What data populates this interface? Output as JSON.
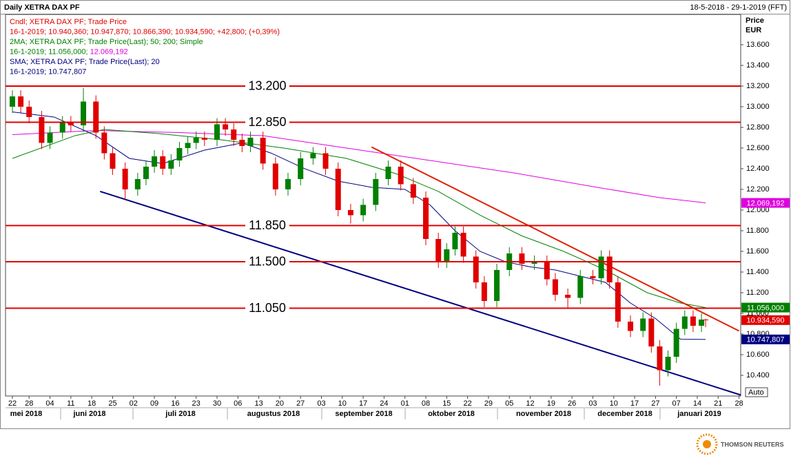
{
  "chart_data": {
    "type": "candlestick",
    "title": "Daily XETRA DAX PF",
    "date_range": "18-5-2018 - 29-1-2019 (FFT)",
    "y_label": "Price",
    "y_unit": "EUR",
    "scale_mode": "Auto",
    "legend": [
      [
        {
          "text": "Cndl; XETRA DAX PF; Trade Price",
          "color": "#e00000"
        }
      ],
      [
        {
          "text": "16-1-2019; 10.940,360; 10.947,870; 10.866,390; 10.934,590; +42,800; (+0,39%)",
          "color": "#e00000"
        }
      ],
      [
        {
          "text": "2MA; XETRA DAX PF; Trade Price(Last);  50; 200; Simple",
          "color": "#008000"
        }
      ],
      [
        {
          "text": "16-1-2019; 11.056,000; ",
          "color": "#008000"
        },
        {
          "text": "12.069,192",
          "color": "#e000e0"
        }
      ],
      [
        {
          "text": "SMA; XETRA DAX PF; Trade Price(Last);  20",
          "color": "#000080"
        }
      ],
      [
        {
          "text": "16-1-2019; 10.747,807",
          "color": "#000080"
        }
      ]
    ],
    "xlim": [
      -1.65,
      174.4
    ],
    "ylim": [
      10.2,
      13.893
    ],
    "yticks": [
      {
        "value": 10.4,
        "label": "10.400"
      },
      {
        "value": 10.6,
        "label": "10.600"
      },
      {
        "value": 10.8,
        "label": "10.800"
      },
      {
        "value": 11.0,
        "label": "11.000"
      },
      {
        "value": 11.2,
        "label": "11.200"
      },
      {
        "value": 11.4,
        "label": "11.400"
      },
      {
        "value": 11.6,
        "label": "11.600"
      },
      {
        "value": 11.8,
        "label": "11.800"
      },
      {
        "value": 12.0,
        "label": "12.000"
      },
      {
        "value": 12.2,
        "label": "12.200"
      },
      {
        "value": 12.4,
        "label": "12.400"
      },
      {
        "value": 12.6,
        "label": "12.600"
      },
      {
        "value": 12.8,
        "label": "12.800"
      },
      {
        "value": 13.0,
        "label": "13.000"
      },
      {
        "value": 13.2,
        "label": "13.200"
      },
      {
        "value": 13.4,
        "label": "13.400"
      },
      {
        "value": 13.6,
        "label": "13.600"
      }
    ],
    "xticks": [
      {
        "value": 0,
        "label": "22"
      },
      {
        "value": 4,
        "label": "28"
      },
      {
        "value": 9,
        "label": "04"
      },
      {
        "value": 14,
        "label": "11"
      },
      {
        "value": 19,
        "label": "18"
      },
      {
        "value": 24,
        "label": "25"
      },
      {
        "value": 29,
        "label": "02"
      },
      {
        "value": 34,
        "label": "09"
      },
      {
        "value": 39,
        "label": "16"
      },
      {
        "value": 44,
        "label": "23"
      },
      {
        "value": 49,
        "label": "30"
      },
      {
        "value": 54,
        "label": "06"
      },
      {
        "value": 59,
        "label": "13"
      },
      {
        "value": 64,
        "label": "20"
      },
      {
        "value": 69,
        "label": "27"
      },
      {
        "value": 74,
        "label": "03"
      },
      {
        "value": 79,
        "label": "10"
      },
      {
        "value": 84,
        "label": "17"
      },
      {
        "value": 89,
        "label": "24"
      },
      {
        "value": 94,
        "label": "01"
      },
      {
        "value": 99,
        "label": "08"
      },
      {
        "value": 104,
        "label": "15"
      },
      {
        "value": 109,
        "label": "22"
      },
      {
        "value": 114,
        "label": "29"
      },
      {
        "value": 119,
        "label": "05"
      },
      {
        "value": 124,
        "label": "12"
      },
      {
        "value": 129,
        "label": "19"
      },
      {
        "value": 134,
        "label": "26"
      },
      {
        "value": 139,
        "label": "03"
      },
      {
        "value": 144,
        "label": "10"
      },
      {
        "value": 149,
        "label": "17"
      },
      {
        "value": 154,
        "label": "27"
      },
      {
        "value": 159,
        "label": "07"
      },
      {
        "value": 164,
        "label": "14"
      },
      {
        "value": 169,
        "label": "21"
      },
      {
        "value": 174,
        "label": "28"
      }
    ],
    "months": [
      "mei 2018",
      "juni 2018",
      "juli 2018",
      "augustus 2018",
      "september 2018",
      "oktober 2018",
      "november 2018",
      "december 2018",
      "januari 2019"
    ],
    "candles": {
      "up_color": "#008000",
      "down_color": "#e00000",
      "last_label": "10.934,590",
      "x": [
        0,
        2,
        4,
        7,
        9,
        12,
        14,
        17,
        20,
        22,
        24,
        27,
        30,
        32,
        34,
        36,
        38,
        40,
        42,
        44,
        46,
        49,
        51,
        53,
        55,
        57,
        60,
        63,
        66,
        69,
        72,
        75,
        78,
        81,
        84,
        87,
        90,
        93,
        96,
        99,
        102,
        104,
        106,
        108,
        111,
        113,
        116,
        119,
        122,
        125,
        128,
        130,
        133,
        136,
        139,
        141,
        143,
        145,
        148,
        151,
        153,
        155,
        157,
        159,
        161,
        163,
        165,
        166
      ],
      "open": [
        13.0,
        13.1,
        13.0,
        12.9,
        12.65,
        12.75,
        12.85,
        12.82,
        13.05,
        12.75,
        12.55,
        12.4,
        12.2,
        12.3,
        12.42,
        12.52,
        12.4,
        12.48,
        12.6,
        12.65,
        12.7,
        12.68,
        12.83,
        12.78,
        12.68,
        12.62,
        12.7,
        12.45,
        12.2,
        12.3,
        12.5,
        12.55,
        12.4,
        12.0,
        11.95,
        12.05,
        12.3,
        12.42,
        12.25,
        12.12,
        11.72,
        11.5,
        11.62,
        11.78,
        11.55,
        11.3,
        11.12,
        11.42,
        11.58,
        11.48,
        11.5,
        11.33,
        11.18,
        11.15,
        11.36,
        11.34,
        11.55,
        11.3,
        10.92,
        10.83,
        10.95,
        10.68,
        10.45,
        10.58,
        10.85,
        10.97,
        10.88,
        10.94036
      ],
      "high": [
        13.16,
        13.16,
        13.06,
        12.96,
        12.81,
        12.91,
        12.91,
        13.18,
        13.11,
        12.81,
        12.61,
        12.46,
        12.36,
        12.48,
        12.58,
        12.58,
        12.54,
        12.66,
        12.71,
        12.76,
        12.76,
        12.89,
        12.89,
        12.84,
        12.74,
        12.76,
        12.76,
        12.51,
        12.36,
        12.56,
        12.61,
        12.61,
        12.46,
        12.06,
        12.11,
        12.36,
        12.48,
        12.48,
        12.31,
        12.18,
        11.78,
        11.68,
        11.84,
        11.84,
        11.61,
        11.36,
        11.48,
        11.64,
        11.64,
        11.56,
        11.56,
        11.39,
        11.24,
        11.42,
        11.42,
        11.61,
        11.61,
        11.36,
        10.98,
        11.01,
        11.01,
        10.74,
        10.64,
        10.91,
        11.03,
        11.03,
        11.0,
        10.94787
      ],
      "low": [
        12.94,
        12.94,
        12.84,
        12.59,
        12.59,
        12.69,
        12.76,
        12.76,
        12.69,
        12.49,
        12.34,
        12.1,
        12.14,
        12.24,
        12.36,
        12.34,
        12.34,
        12.42,
        12.54,
        12.59,
        12.62,
        12.62,
        12.72,
        12.62,
        12.56,
        12.56,
        12.39,
        12.14,
        12.14,
        12.24,
        12.44,
        12.34,
        11.94,
        11.87,
        11.89,
        11.99,
        12.24,
        12.19,
        12.06,
        11.66,
        11.44,
        11.44,
        11.56,
        11.49,
        11.24,
        11.06,
        11.06,
        11.36,
        11.42,
        11.42,
        11.27,
        11.12,
        11.05,
        11.09,
        11.28,
        11.28,
        11.24,
        10.86,
        10.77,
        10.77,
        10.62,
        10.3,
        10.39,
        10.52,
        10.79,
        10.82,
        10.82,
        10.86639
      ],
      "close": [
        13.1,
        13.0,
        12.9,
        12.65,
        12.75,
        12.85,
        12.82,
        13.05,
        12.75,
        12.55,
        12.4,
        12.2,
        12.3,
        12.42,
        12.52,
        12.4,
        12.48,
        12.6,
        12.65,
        12.7,
        12.68,
        12.83,
        12.78,
        12.68,
        12.62,
        12.7,
        12.45,
        12.2,
        12.3,
        12.5,
        12.55,
        12.4,
        12.0,
        11.95,
        12.05,
        12.3,
        12.42,
        12.25,
        12.12,
        11.72,
        11.5,
        11.62,
        11.78,
        11.55,
        11.3,
        11.12,
        11.42,
        11.58,
        11.48,
        11.5,
        11.33,
        11.18,
        11.15,
        11.36,
        11.34,
        11.55,
        11.3,
        10.92,
        10.83,
        10.95,
        10.68,
        10.45,
        10.58,
        10.85,
        10.97,
        10.88,
        10.94,
        10.93459
      ]
    },
    "series": [
      {
        "color": "#e000e0",
        "last_label": "12.069,192",
        "x": [
          0,
          20,
          40,
          60,
          80,
          100,
          120,
          140,
          155,
          166
        ],
        "values": [
          12.73,
          12.77,
          12.75,
          12.72,
          12.6,
          12.48,
          12.36,
          12.22,
          12.12,
          12.069192
        ]
      },
      {
        "color": "#008000",
        "last_label": "11.056,000",
        "x": [
          0,
          15,
          22,
          35,
          50,
          65,
          80,
          92,
          102,
          112,
          122,
          132,
          142,
          152,
          160,
          166
        ],
        "values": [
          12.5,
          12.72,
          12.78,
          12.74,
          12.68,
          12.6,
          12.5,
          12.35,
          12.18,
          11.95,
          11.75,
          11.6,
          11.42,
          11.2,
          11.1,
          11.056
        ]
      },
      {
        "color": "#000080",
        "last_label": "10.747,807",
        "x": [
          0,
          10,
          20,
          28,
          36,
          46,
          55,
          62,
          70,
          78,
          86,
          94,
          100,
          106,
          112,
          118,
          124,
          130,
          136,
          142,
          148,
          154,
          160,
          166
        ],
        "values": [
          12.95,
          12.9,
          12.72,
          12.5,
          12.45,
          12.58,
          12.65,
          12.55,
          12.4,
          12.28,
          12.22,
          12.2,
          12.05,
          11.8,
          11.6,
          11.5,
          11.45,
          11.42,
          11.36,
          11.3,
          11.1,
          10.95,
          10.75,
          10.747807
        ]
      }
    ],
    "levels": [
      {
        "value": 13.2,
        "label": "13.200"
      },
      {
        "value": 12.85,
        "label": "12.850"
      },
      {
        "value": 11.85,
        "label": "11.850"
      },
      {
        "value": 11.5,
        "label": "11.500"
      },
      {
        "value": 11.05,
        "label": "11.050"
      }
    ],
    "level_color": "#e00000",
    "trendlines": [
      {
        "color": "#e02000",
        "x": [
          86,
          174
        ],
        "values": [
          12.61,
          10.83
        ]
      },
      {
        "color": "#000080",
        "x": [
          21,
          174.4
        ],
        "values": [
          12.18,
          10.21
        ]
      }
    ]
  },
  "footer": {
    "brand": "THOMSON REUTERS"
  }
}
